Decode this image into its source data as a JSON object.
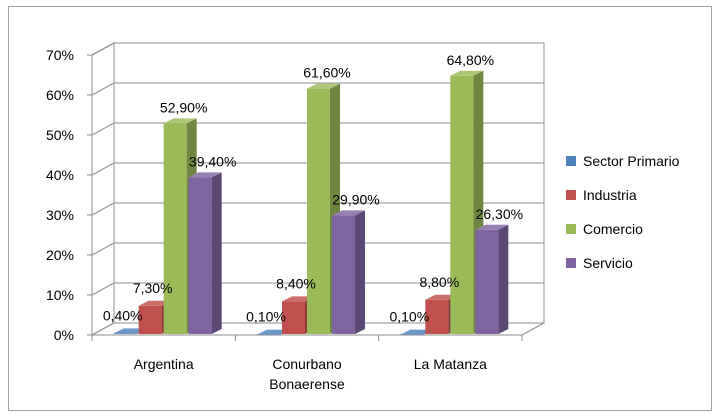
{
  "chart_data": {
    "type": "bar",
    "categories": [
      "Argentina",
      "Conurbano Bonaerense",
      "La Matanza"
    ],
    "category_lines": [
      [
        "Argentina"
      ],
      [
        "Conurbano",
        "Bonaerense"
      ],
      [
        "La Matanza"
      ]
    ],
    "series": [
      {
        "name": "Sector Primario",
        "values": [
          0.4,
          0.1,
          0.1
        ],
        "labels": [
          "0,40%",
          "0,10%",
          "0,10%"
        ],
        "color": "#4f81bd"
      },
      {
        "name": "Industria",
        "values": [
          7.3,
          8.4,
          8.8
        ],
        "labels": [
          "7,30%",
          "8,40%",
          "8,80%"
        ],
        "color": "#c0504d"
      },
      {
        "name": "Comercio",
        "values": [
          52.9,
          61.6,
          64.8
        ],
        "labels": [
          "52,90%",
          "61,60%",
          "64,80%"
        ],
        "color": "#9bbb59"
      },
      {
        "name": "Servicio",
        "values": [
          39.4,
          29.9,
          26.3
        ],
        "labels": [
          "39,40%",
          "29,90%",
          "26,30%"
        ],
        "color": "#8064a2"
      }
    ],
    "y_ticks": [
      "0%",
      "10%",
      "20%",
      "30%",
      "40%",
      "50%",
      "60%",
      "70%"
    ],
    "ylim": [
      0,
      70
    ],
    "y_unit": "%",
    "grid": true,
    "legend": "right",
    "style": "3d-clustered-column"
  }
}
